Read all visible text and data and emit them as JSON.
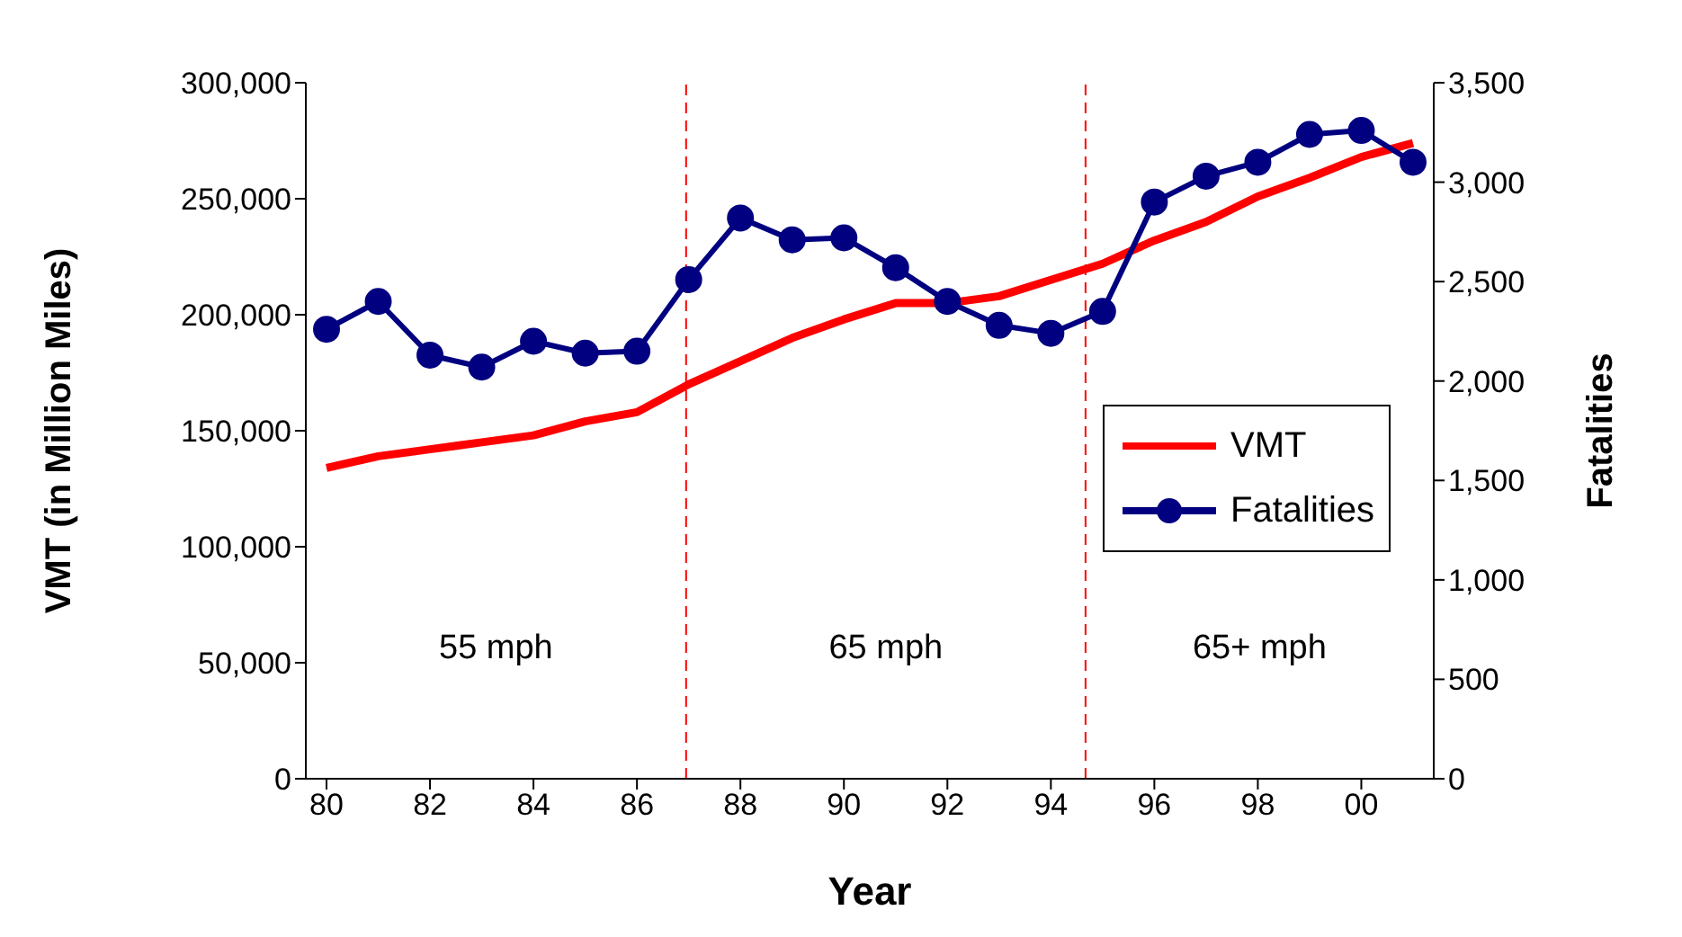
{
  "chart_data": {
    "type": "line",
    "x": [
      1980,
      1981,
      1982,
      1983,
      1984,
      1985,
      1986,
      1987,
      1988,
      1989,
      1990,
      1991,
      1992,
      1993,
      1994,
      1995,
      1996,
      1997,
      1998,
      1999,
      2000,
      2001
    ],
    "series": [
      {
        "name": "VMT",
        "color": "#ff0000",
        "marker": "none",
        "values": [
          134000,
          139000,
          142000,
          145000,
          148000,
          154000,
          158000,
          170000,
          180000,
          190000,
          198000,
          205000,
          205000,
          208000,
          215000,
          222000,
          232000,
          240000,
          251000,
          259000,
          268000,
          274000
        ]
      },
      {
        "name": "Fatalities",
        "color": "#000080",
        "marker": "circle",
        "axis": "y2",
        "values": [
          2260,
          2400,
          2130,
          2070,
          2200,
          2140,
          2150,
          2510,
          2820,
          2710,
          2720,
          2570,
          2400,
          2280,
          2240,
          2350,
          2900,
          3030,
          3100,
          3240,
          3260,
          3100
        ]
      }
    ],
    "xlabel": "Year",
    "ylabel": "VMT (in Million Miles)",
    "y2label": "Fatalities",
    "xlim": [
      1979.6,
      2001.4
    ],
    "xticks": [
      {
        "value": 1980,
        "label": "80"
      },
      {
        "value": 1982,
        "label": "82"
      },
      {
        "value": 1984,
        "label": "84"
      },
      {
        "value": 1986,
        "label": "86"
      },
      {
        "value": 1988,
        "label": "88"
      },
      {
        "value": 1990,
        "label": "90"
      },
      {
        "value": 1992,
        "label": "92"
      },
      {
        "value": 1994,
        "label": "94"
      },
      {
        "value": 1996,
        "label": "96"
      },
      {
        "value": 1998,
        "label": "98"
      },
      {
        "value": 2000,
        "label": "00"
      }
    ],
    "ylim": [
      0,
      300000
    ],
    "yticks": [
      0,
      {
        "value": 50000,
        "label": "50,000"
      },
      {
        "value": 100000,
        "label": "100,000"
      },
      {
        "value": 150000,
        "label": "150,000"
      },
      {
        "value": 200000,
        "label": "200,000"
      },
      {
        "value": 250000,
        "label": "250,000"
      },
      {
        "value": 300000,
        "label": "300,000"
      }
    ],
    "y2lim": [
      0,
      3500
    ],
    "y2ticks": [
      0,
      500,
      {
        "value": 1000,
        "label": "1,000"
      },
      {
        "value": 1500,
        "label": "1,500"
      },
      {
        "value": 2000,
        "label": "2,000"
      },
      {
        "value": 2500,
        "label": "2,500"
      },
      {
        "value": 3000,
        "label": "3,000"
      },
      {
        "value": 3500,
        "label": "3,500"
      }
    ],
    "ref_lines": [
      {
        "axis": "x",
        "value": 1986.95,
        "color": "#ff0000",
        "line_style": "dashed"
      },
      {
        "axis": "x",
        "value": 1994.67,
        "color": "#ff0000",
        "line_style": "dashed"
      }
    ],
    "annotations": [
      "55 mph",
      "65 mph",
      "65+ mph"
    ],
    "legend": "right"
  }
}
